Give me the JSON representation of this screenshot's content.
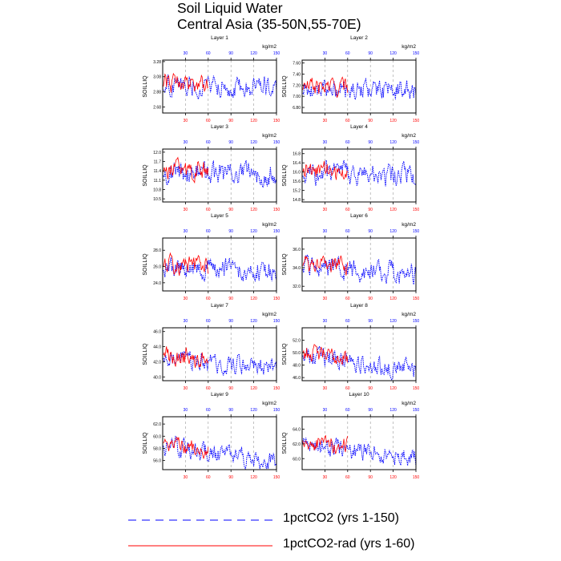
{
  "title": {
    "line1": "Soil Liquid Water",
    "line2": "Central Asia (35-50N,55-70E)"
  },
  "colors": {
    "series_1pctCO2": "#0000ff",
    "series_rad": "#ff0000",
    "axis": "#000000"
  },
  "legend": [
    {
      "label": "1pctCO2 (yrs 1-150)",
      "color": "#0000ff",
      "style": "dashed"
    },
    {
      "label": "1pctCO2-rad (yrs 1-60)",
      "color": "#ff0000",
      "style": "solid"
    }
  ],
  "chart_data": [
    {
      "type": "line",
      "title": "Layer 1",
      "ylabel": "SOILLIQ",
      "units": "kg/m2",
      "ylim": [
        2.6,
        3.3
      ],
      "yticks": [
        "2.68",
        "2.88",
        "3.08",
        "3.28"
      ],
      "top_ticks": [
        "30",
        "60",
        "90",
        "120",
        "150"
      ],
      "bottom_ticks": [
        "30",
        "60",
        "90",
        "120",
        "150"
      ],
      "grid": "dashed-vertical",
      "seed": 11,
      "mean": 2.96,
      "amp": 0.12,
      "trend": -0.01,
      "series": [
        {
          "name": "1pctCO2 (yrs 1-150)",
          "x_range": [
            1,
            150
          ]
        },
        {
          "name": "1pctCO2-rad (yrs 1-60)",
          "x_range": [
            1,
            60
          ]
        }
      ]
    },
    {
      "type": "line",
      "title": "Layer 2",
      "ylabel": "SOILLIQ",
      "units": "kg/m2",
      "ylim": [
        6.7,
        7.65
      ],
      "yticks": [
        "6.80",
        "7.00",
        "7.20",
        "7.40",
        "7.60"
      ],
      "top_ticks": [
        "30",
        "60",
        "90",
        "120",
        "150"
      ],
      "bottom_ticks": [
        "30",
        "60",
        "90",
        "120",
        "150"
      ],
      "grid": "dashed-vertical",
      "seed": 22,
      "mean": 7.12,
      "amp": 0.15,
      "trend": -0.02,
      "series": [
        {
          "name": "1pctCO2 (yrs 1-150)",
          "x_range": [
            1,
            150
          ]
        },
        {
          "name": "1pctCO2-rad (yrs 1-60)",
          "x_range": [
            1,
            60
          ]
        }
      ]
    },
    {
      "type": "line",
      "title": "Layer 3",
      "ylabel": "SOILLIQ",
      "units": "kg/m2",
      "ylim": [
        10.4,
        12.1
      ],
      "yticks": [
        "10.5",
        "10.8",
        "11.1",
        "11.4",
        "11.7",
        "12.0"
      ],
      "top_ticks": [
        "30",
        "60",
        "90",
        "120",
        "150"
      ],
      "bottom_ticks": [
        "30",
        "60",
        "90",
        "120",
        "150"
      ],
      "grid": "dashed-vertical",
      "seed": 33,
      "mean": 11.35,
      "amp": 0.3,
      "trend": -0.05,
      "series": [
        {
          "name": "1pctCO2 (yrs 1-150)",
          "x_range": [
            1,
            150
          ]
        },
        {
          "name": "1pctCO2-rad (yrs 1-60)",
          "x_range": [
            1,
            60
          ]
        }
      ]
    },
    {
      "type": "line",
      "title": "Layer 4",
      "ylabel": "SOILLIQ",
      "units": "kg/m2",
      "ylim": [
        14.7,
        17.0
      ],
      "yticks": [
        "14.8",
        "15.2",
        "15.6",
        "16.0",
        "16.4",
        "16.8"
      ],
      "top_ticks": [
        "30",
        "60",
        "90",
        "120",
        "150"
      ],
      "bottom_ticks": [
        "30",
        "60",
        "90",
        "120",
        "150"
      ],
      "grid": "dashed-vertical",
      "seed": 44,
      "mean": 15.95,
      "amp": 0.4,
      "trend": -0.1,
      "series": [
        {
          "name": "1pctCO2 (yrs 1-150)",
          "x_range": [
            1,
            150
          ]
        },
        {
          "name": "1pctCO2-rad (yrs 1-60)",
          "x_range": [
            1,
            60
          ]
        }
      ]
    },
    {
      "type": "line",
      "title": "Layer 5",
      "ylabel": "SOILLIQ",
      "units": "kg/m2",
      "ylim": [
        23.0,
        29.5
      ],
      "yticks": [
        "24.0",
        "26.0",
        "28.0"
      ],
      "top_ticks": [
        "30",
        "60",
        "90",
        "120",
        "150"
      ],
      "bottom_ticks": [
        "30",
        "60",
        "90",
        "120",
        "150"
      ],
      "grid": "dashed-vertical",
      "seed": 55,
      "mean": 25.8,
      "amp": 1.1,
      "trend": -0.3,
      "series": [
        {
          "name": "1pctCO2 (yrs 1-150)",
          "x_range": [
            1,
            150
          ]
        },
        {
          "name": "1pctCO2-rad (yrs 1-60)",
          "x_range": [
            1,
            60
          ]
        }
      ]
    },
    {
      "type": "line",
      "title": "Layer 6",
      "ylabel": "SOILLIQ",
      "units": "kg/m2",
      "ylim": [
        31.5,
        37.2
      ],
      "yticks": [
        "32.0",
        "34.0",
        "36.0"
      ],
      "top_ticks": [
        "30",
        "60",
        "90",
        "120",
        "150"
      ],
      "bottom_ticks": [
        "30",
        "60",
        "90",
        "120",
        "150"
      ],
      "grid": "dashed-vertical",
      "seed": 66,
      "mean": 34.0,
      "amp": 1.0,
      "trend": -0.6,
      "series": [
        {
          "name": "1pctCO2 (yrs 1-150)",
          "x_range": [
            1,
            150
          ]
        },
        {
          "name": "1pctCO2-rad (yrs 1-60)",
          "x_range": [
            1,
            60
          ]
        }
      ]
    },
    {
      "type": "line",
      "title": "Layer 7",
      "ylabel": "SOILLIQ",
      "units": "kg/m2",
      "ylim": [
        39.5,
        46.5
      ],
      "yticks": [
        "40.0",
        "42.0",
        "44.0",
        "46.0"
      ],
      "top_ticks": [
        "30",
        "60",
        "90",
        "120",
        "150"
      ],
      "bottom_ticks": [
        "30",
        "60",
        "90",
        "120",
        "150"
      ],
      "grid": "dashed-vertical",
      "seed": 77,
      "mean": 42.6,
      "amp": 1.1,
      "trend": -1.6,
      "series": [
        {
          "name": "1pctCO2 (yrs 1-150)",
          "x_range": [
            1,
            150
          ]
        },
        {
          "name": "1pctCO2-rad (yrs 1-60)",
          "x_range": [
            1,
            60
          ]
        }
      ]
    },
    {
      "type": "line",
      "title": "Layer 8",
      "ylabel": "SOILLIQ",
      "units": "kg/m2",
      "ylim": [
        45.5,
        54.0
      ],
      "yticks": [
        "46.0",
        "48.0",
        "50.0",
        "52.0"
      ],
      "top_ticks": [
        "30",
        "60",
        "90",
        "120",
        "150"
      ],
      "bottom_ticks": [
        "30",
        "60",
        "90",
        "120",
        "150"
      ],
      "grid": "dashed-vertical",
      "seed": 88,
      "mean": 49.6,
      "amp": 1.3,
      "trend": -2.4,
      "series": [
        {
          "name": "1pctCO2 (yrs 1-150)",
          "x_range": [
            1,
            150
          ]
        },
        {
          "name": "1pctCO2-rad (yrs 1-60)",
          "x_range": [
            1,
            60
          ]
        }
      ]
    },
    {
      "type": "line",
      "title": "Layer 9",
      "ylabel": "SOILLIQ",
      "units": "kg/m2",
      "ylim": [
        54.5,
        63.2
      ],
      "yticks": [
        "56.0",
        "58.0",
        "60.0",
        "62.0"
      ],
      "top_ticks": [
        "30",
        "60",
        "90",
        "120",
        "150"
      ],
      "bottom_ticks": [
        "30",
        "60",
        "90",
        "120",
        "150"
      ],
      "grid": "dashed-vertical",
      "seed": 99,
      "mean": 58.4,
      "amp": 1.3,
      "trend": -2.6,
      "series": [
        {
          "name": "1pctCO2 (yrs 1-150)",
          "x_range": [
            1,
            150
          ]
        },
        {
          "name": "1pctCO2-rad (yrs 1-60)",
          "x_range": [
            1,
            60
          ]
        }
      ]
    },
    {
      "type": "line",
      "title": "Layer 10",
      "ylabel": "SOILLIQ",
      "units": "kg/m2",
      "ylim": [
        58.5,
        65.7
      ],
      "yticks": [
        "60.0",
        "62.0",
        "64.0"
      ],
      "top_ticks": [
        "30",
        "60",
        "90",
        "120",
        "150"
      ],
      "bottom_ticks": [
        "30",
        "60",
        "90",
        "120",
        "150"
      ],
      "grid": "dashed-vertical",
      "seed": 111,
      "mean": 62.0,
      "amp": 1.1,
      "trend": -2.0,
      "series": [
        {
          "name": "1pctCO2 (yrs 1-150)",
          "x_range": [
            1,
            150
          ]
        },
        {
          "name": "1pctCO2-rad (yrs 1-60)",
          "x_range": [
            1,
            60
          ]
        }
      ]
    }
  ]
}
